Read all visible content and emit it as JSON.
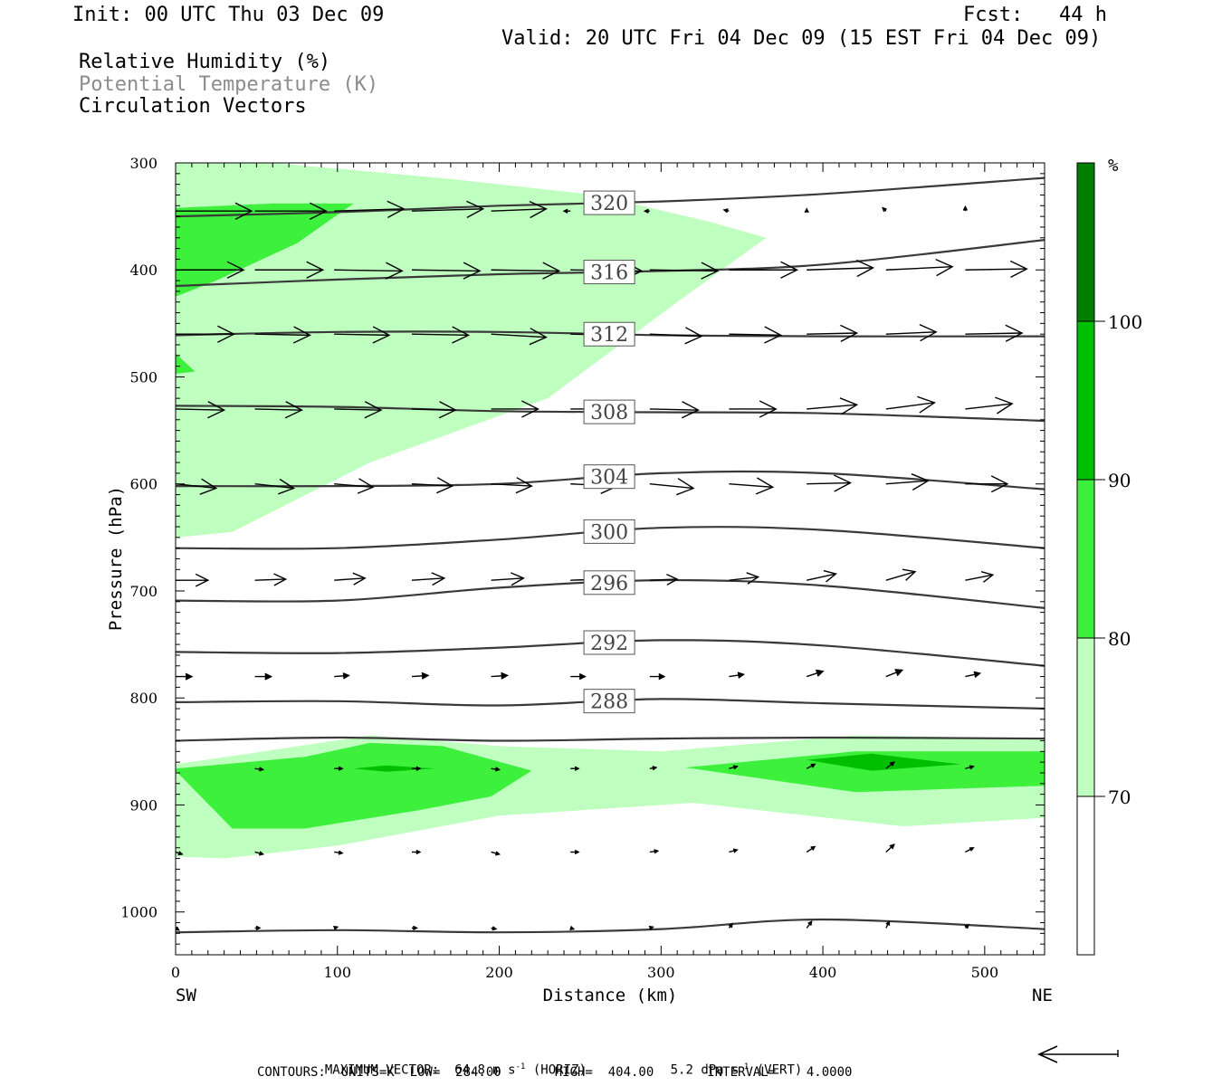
{
  "header": {
    "init": "Init: 00 UTC Thu 03 Dec 09",
    "fcst": "Fcst:   44 h",
    "valid": "Valid: 20 UTC Fri 04 Dec 09 (15 EST Fri 04 Dec 09)"
  },
  "legend_titles": {
    "rh": "Relative Humidity (%)",
    "theta": "Potential Temperature (K)",
    "vectors": "Circulation Vectors"
  },
  "footer": {
    "max_vector_label": "MAXIMUM VECTOR:",
    "horiz_value": "64.8 m s",
    "horiz_unit": "(HORIZ)",
    "vert_value": "5.2 dPa s",
    "vert_unit": "(VERT)",
    "exp": "-1",
    "contours": "CONTOURS:  UNITS=K  LOW=  284.00       HIGH=  404.00       INTERVAL=    4.0000"
  },
  "colors": {
    "rh_70_80": "#bfffbf",
    "rh_80_90": "#3cf03c",
    "rh_90_100": "#00bf00",
    "rh_100": "#007f00",
    "contour": "#3a3a3a"
  },
  "chart_data": {
    "type": "cross-section",
    "xlabel": "Distance (km)",
    "ylabel": "Pressure (hPa)",
    "xlim": [
      0,
      537
    ],
    "ylim": [
      1040,
      300
    ],
    "x_ticks": [
      0,
      100,
      200,
      300,
      400,
      500
    ],
    "y_ticks": [
      300,
      400,
      500,
      600,
      700,
      800,
      900,
      1000
    ],
    "left_end_label": "SW",
    "right_end_label": "NE",
    "colorbar": {
      "unit": "%",
      "levels": [
        70,
        80,
        90,
        100
      ]
    },
    "theta_contours": [
      {
        "value": 320,
        "label": "320",
        "x": [
          0,
          100,
          200,
          300,
          400,
          537
        ],
        "p": [
          350,
          346,
          340,
          336,
          329,
          314
        ]
      },
      {
        "value": 316,
        "label": "316",
        "x": [
          0,
          100,
          200,
          300,
          400,
          537
        ],
        "p": [
          415,
          409,
          404,
          401,
          395,
          372
        ]
      },
      {
        "value": 312,
        "label": "312",
        "x": [
          0,
          100,
          200,
          300,
          400,
          537
        ],
        "p": [
          461,
          458,
          458,
          461,
          462,
          462
        ]
      },
      {
        "value": 308,
        "label": "308",
        "x": [
          0,
          100,
          200,
          300,
          400,
          537
        ],
        "p": [
          527,
          528,
          532,
          533,
          534,
          541
        ]
      },
      {
        "value": 304,
        "label": "304",
        "x": [
          0,
          100,
          200,
          300,
          400,
          537
        ],
        "p": [
          602,
          602,
          600,
          590,
          590,
          605
        ]
      },
      {
        "value": 300,
        "label": "300",
        "x": [
          0,
          100,
          200,
          300,
          400,
          537
        ],
        "p": [
          660,
          660,
          652,
          641,
          643,
          660
        ]
      },
      {
        "value": 296,
        "label": "296",
        "x": [
          0,
          100,
          200,
          300,
          400,
          537
        ],
        "p": [
          709,
          709,
          697,
          690,
          695,
          716
        ]
      },
      {
        "value": 292,
        "label": "292",
        "x": [
          0,
          100,
          200,
          300,
          400,
          537
        ],
        "p": [
          757,
          758,
          753,
          746,
          751,
          770
        ]
      },
      {
        "value": 288,
        "label": "288",
        "x": [
          0,
          100,
          200,
          300,
          400,
          537
        ],
        "p": [
          804,
          803,
          807,
          801,
          805,
          810
        ]
      },
      {
        "value": 284,
        "label": "",
        "x": [
          0,
          100,
          200,
          300,
          400,
          537
        ],
        "p": [
          840,
          837,
          840,
          838,
          837,
          838
        ]
      },
      {
        "value": 280,
        "label": "",
        "x": [
          0,
          100,
          200,
          300,
          400,
          537
        ],
        "p": [
          1019,
          1017,
          1019,
          1016,
          1007,
          1016
        ]
      }
    ],
    "rh_regions": [
      {
        "level": "70-80",
        "x": [
          0,
          60,
          170,
          260,
          330,
          365,
          310,
          230,
          120,
          35,
          0
        ],
        "p": [
          300,
          300,
          315,
          330,
          355,
          370,
          430,
          520,
          580,
          645,
          650
        ]
      },
      {
        "level": "80-90",
        "x": [
          0,
          60,
          110,
          75,
          25,
          0
        ],
        "p": [
          342,
          338,
          338,
          375,
          410,
          425
        ]
      },
      {
        "level": "80-90",
        "x": [
          0,
          12,
          0
        ],
        "p": [
          478,
          495,
          497
        ]
      },
      {
        "level": "70-80",
        "x": [
          0,
          45,
          120,
          200,
          300,
          420,
          537,
          537,
          450,
          320,
          200,
          100,
          30,
          0
        ],
        "p": [
          862,
          852,
          835,
          845,
          850,
          835,
          838,
          912,
          920,
          898,
          910,
          938,
          950,
          948
        ]
      },
      {
        "level": "80-90",
        "x": [
          0,
          80,
          120,
          165,
          220,
          195,
          150,
          80,
          35,
          0
        ],
        "p": [
          866,
          855,
          842,
          845,
          868,
          892,
          905,
          922,
          922,
          868
        ]
      },
      {
        "level": "80-90",
        "x": [
          315,
          420,
          537,
          537,
          420,
          315
        ],
        "p": [
          865,
          850,
          850,
          882,
          888,
          865
        ]
      },
      {
        "level": "90-100",
        "x": [
          110,
          130,
          160,
          130,
          110
        ],
        "p": [
          866,
          863,
          866,
          869,
          866
        ]
      },
      {
        "level": "90-100",
        "x": [
          390,
          430,
          485,
          430,
          390
        ],
        "p": [
          858,
          852,
          862,
          868,
          858
        ]
      }
    ],
    "vector_rows": [
      {
        "p": 345,
        "x_start": [
          0,
          49,
          98,
          146,
          195,
          244,
          293,
          342,
          390,
          439,
          488
        ],
        "x_end": [
          47,
          93,
          141,
          190,
          229,
          240,
          290,
          339,
          390,
          437,
          488
        ],
        "p_end": [
          345,
          345,
          343,
          343,
          343,
          345,
          345,
          344,
          343,
          342,
          341
        ]
      },
      {
        "p": 400,
        "x_start": [
          0,
          49,
          98,
          146,
          195,
          244,
          293,
          342,
          390,
          439,
          488
        ],
        "x_end": [
          42,
          91,
          140,
          188,
          237,
          288,
          335,
          384,
          431,
          480,
          526
        ],
        "p_end": [
          400,
          400,
          401,
          401,
          401,
          401,
          401,
          400,
          398,
          397,
          399
        ]
      },
      {
        "p": 460,
        "x_start": [
          0,
          49,
          98,
          146,
          195,
          244,
          293,
          342,
          390,
          439,
          488
        ],
        "x_end": [
          36,
          83,
          132,
          181,
          229,
          277,
          325,
          374,
          421,
          470,
          523
        ],
        "p_end": [
          460,
          461,
          461,
          461,
          463,
          461,
          462,
          461,
          459,
          458,
          459
        ]
      },
      {
        "p": 530,
        "x_start": [
          0,
          49,
          98,
          146,
          195,
          244,
          293,
          342,
          390,
          439,
          488
        ],
        "x_end": [
          30,
          78,
          127,
          173,
          224,
          277,
          323,
          371,
          421,
          469,
          517
        ],
        "p_end": [
          531,
          531,
          531,
          531,
          530,
          530,
          531,
          530,
          526,
          524,
          525
        ]
      },
      {
        "p": 600,
        "x_start": [
          0,
          49,
          98,
          146,
          195,
          244,
          293,
          342,
          390,
          439,
          488
        ],
        "x_end": [
          25,
          73,
          122,
          171,
          220,
          273,
          320,
          369,
          417,
          465,
          514
        ],
        "p_end": [
          604,
          604,
          603,
          602,
          602,
          602,
          604,
          603,
          599,
          597,
          600
        ]
      },
      {
        "p": 690,
        "x_start": [
          0,
          49,
          98,
          146,
          195,
          244,
          293,
          342,
          390,
          439,
          488
        ],
        "x_end": [
          20,
          68,
          117,
          166,
          215,
          264,
          310,
          360,
          408,
          457,
          505
        ],
        "p_end": [
          690,
          689,
          688,
          688,
          688,
          689,
          689,
          687,
          684,
          682,
          685
        ]
      },
      {
        "p": 780,
        "x_start": [
          0,
          49,
          98,
          146,
          195,
          244,
          293,
          342,
          390,
          439,
          488
        ],
        "x_end": [
          10,
          59,
          107,
          156,
          205,
          253,
          302,
          351,
          400,
          449,
          497
        ],
        "p_end": [
          780,
          780,
          779,
          779,
          779,
          780,
          780,
          778,
          775,
          774,
          777
        ]
      },
      {
        "p": 866,
        "x_start": [
          49,
          98,
          146,
          195,
          244,
          293,
          342,
          390,
          439,
          488
        ],
        "x_end": [
          54,
          103,
          151,
          200,
          249,
          297,
          347,
          395,
          444,
          493
        ],
        "p_end": [
          867,
          866,
          866,
          867,
          866,
          865,
          864,
          862,
          860,
          864
        ]
      },
      {
        "p": 944,
        "x_start": [
          0,
          49,
          98,
          146,
          195,
          244,
          293,
          342,
          390,
          439,
          488
        ],
        "x_end": [
          4,
          54,
          103,
          151,
          200,
          249,
          298,
          347,
          395,
          444,
          493
        ],
        "p_end": [
          946,
          946,
          945,
          944,
          946,
          944,
          943,
          942,
          939,
          937,
          940
        ]
      },
      {
        "p": 1015,
        "x_start": [
          0,
          49,
          98,
          146,
          195,
          244,
          293,
          342,
          390,
          439,
          488
        ],
        "x_end": [
          2,
          52,
          100,
          149,
          198,
          246,
          295,
          344,
          393,
          441,
          490
        ],
        "p_end": [
          1017,
          1015,
          1014,
          1015,
          1016,
          1016,
          1014,
          1011,
          1009,
          1009,
          1012
        ]
      }
    ]
  }
}
